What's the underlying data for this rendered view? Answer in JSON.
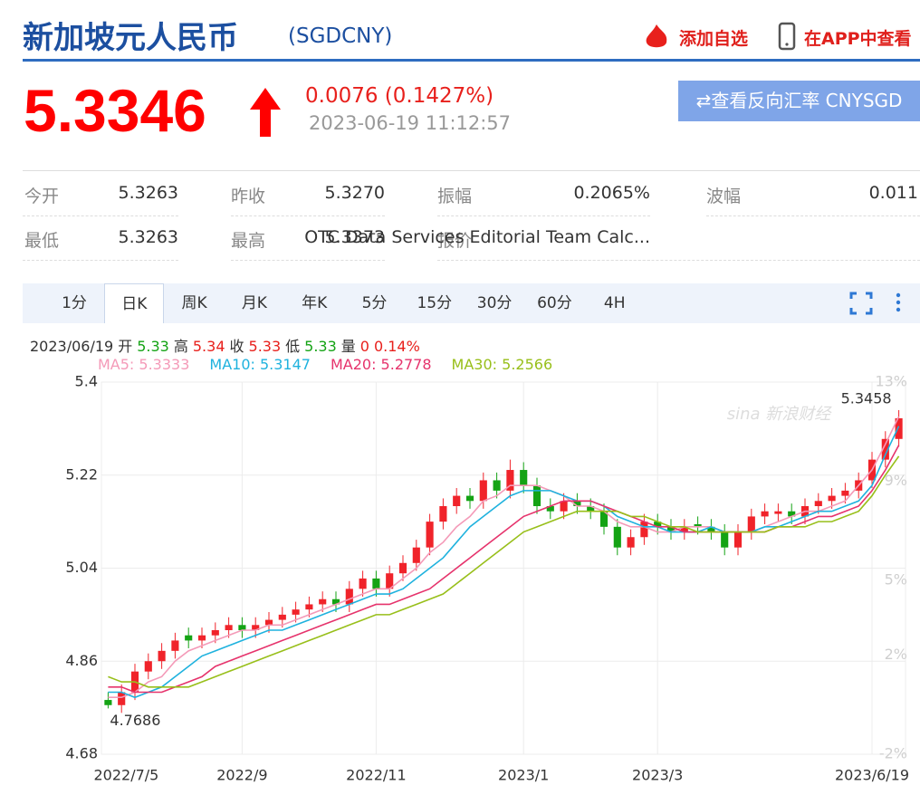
{
  "header": {
    "title": "新加坡元人民币",
    "code": "(SGDCNY)",
    "add_watch": "添加自选",
    "view_app": "在APP中查看"
  },
  "quote": {
    "price": "5.3346",
    "change": "0.0076 (0.1427%)",
    "time": "2023-06-19 11:12:57",
    "reverse_button": "⇄查看反向汇率 CNYSGD"
  },
  "stats": {
    "rows": [
      [
        "今开",
        "5.3263",
        "昨收",
        "5.3270",
        "振幅",
        "0.2065%",
        "波幅",
        "0.011"
      ],
      [
        "最低",
        "5.3263",
        "最高",
        "5.3373",
        "报价",
        "OTC Data Services Editorial Team Calc..."
      ]
    ]
  },
  "tabs": [
    "1分",
    "日K",
    "周K",
    "月K",
    "年K",
    "5分",
    "15分",
    "30分",
    "60分",
    "4H"
  ],
  "info": [
    "2023/06/19",
    "开",
    "5.33",
    "高",
    "5.34",
    "收",
    "5.33",
    "低",
    "5.33",
    "量",
    "0",
    "0.14%"
  ],
  "chart_data": {
    "type": "candlestick",
    "watermark": "sina 新浪财经",
    "up_color": "#f0232a",
    "down_color": "#14a314",
    "open": [
      4.785,
      4.775,
      4.8,
      4.84,
      4.86,
      4.88,
      4.91,
      4.9,
      4.91,
      4.92,
      4.93,
      4.92,
      4.93,
      4.94,
      4.95,
      4.96,
      4.97,
      4.98,
      4.97,
      5.0,
      5.02,
      5.0,
      5.03,
      5.05,
      5.08,
      5.13,
      5.16,
      5.18,
      5.17,
      5.21,
      5.19,
      5.23,
      5.2,
      5.16,
      5.15,
      5.17,
      5.16,
      5.15,
      5.12,
      5.08,
      5.1,
      5.13,
      5.12,
      5.11,
      5.125,
      5.12,
      5.11,
      5.08,
      5.11,
      5.14,
      5.145,
      5.15,
      5.14,
      5.16,
      5.17,
      5.18,
      5.19,
      5.21,
      5.25,
      5.29
    ],
    "high": [
      4.8,
      4.815,
      4.855,
      4.875,
      4.895,
      4.915,
      4.925,
      4.925,
      4.935,
      4.945,
      4.945,
      4.945,
      4.955,
      4.965,
      4.975,
      4.985,
      4.995,
      4.995,
      5.015,
      5.035,
      5.035,
      5.045,
      5.065,
      5.095,
      5.145,
      5.175,
      5.195,
      5.195,
      5.225,
      5.225,
      5.25,
      5.245,
      5.215,
      5.175,
      5.185,
      5.185,
      5.175,
      5.165,
      5.135,
      5.115,
      5.145,
      5.145,
      5.135,
      5.135,
      5.14,
      5.135,
      5.125,
      5.125,
      5.155,
      5.165,
      5.165,
      5.165,
      5.175,
      5.185,
      5.195,
      5.205,
      5.225,
      5.265,
      5.305,
      5.3458
    ],
    "low": [
      4.7686,
      4.76,
      4.785,
      4.825,
      4.845,
      4.865,
      4.885,
      4.885,
      4.895,
      4.905,
      4.905,
      4.905,
      4.915,
      4.925,
      4.935,
      4.945,
      4.955,
      4.955,
      4.955,
      4.985,
      4.985,
      4.985,
      5.015,
      5.035,
      5.065,
      5.115,
      5.145,
      5.155,
      5.155,
      5.175,
      5.175,
      5.185,
      5.145,
      5.135,
      5.135,
      5.145,
      5.135,
      5.105,
      5.065,
      5.065,
      5.085,
      5.105,
      5.095,
      5.095,
      5.105,
      5.095,
      5.065,
      5.065,
      5.095,
      5.125,
      5.13,
      5.125,
      5.125,
      5.145,
      5.155,
      5.165,
      5.175,
      5.195,
      5.235,
      5.275
    ],
    "close": [
      4.775,
      4.8,
      4.84,
      4.86,
      4.88,
      4.9,
      4.9,
      4.91,
      4.92,
      4.93,
      4.92,
      4.93,
      4.94,
      4.95,
      4.96,
      4.97,
      4.98,
      4.97,
      5.0,
      5.02,
      5.0,
      5.03,
      5.05,
      5.08,
      5.13,
      5.16,
      5.18,
      5.17,
      5.21,
      5.19,
      5.23,
      5.2,
      5.16,
      5.15,
      5.17,
      5.16,
      5.15,
      5.12,
      5.08,
      5.1,
      5.13,
      5.12,
      5.11,
      5.12,
      5.12,
      5.11,
      5.08,
      5.11,
      5.14,
      5.15,
      5.15,
      5.14,
      5.16,
      5.17,
      5.18,
      5.19,
      5.21,
      5.25,
      5.29,
      5.33
    ],
    "series": [
      {
        "name": "MA5: 5.3333",
        "color": "#f49ab8",
        "values": [
          4.79,
          4.79,
          4.8,
          4.82,
          4.83,
          4.86,
          4.88,
          4.89,
          4.9,
          4.91,
          4.92,
          4.92,
          4.93,
          4.93,
          4.94,
          4.95,
          4.96,
          4.97,
          4.98,
          4.99,
          5.0,
          5.0,
          5.02,
          5.04,
          5.07,
          5.09,
          5.12,
          5.14,
          5.17,
          5.18,
          5.2,
          5.2,
          5.2,
          5.19,
          5.18,
          5.16,
          5.16,
          5.15,
          5.13,
          5.12,
          5.12,
          5.11,
          5.11,
          5.12,
          5.12,
          5.12,
          5.11,
          5.11,
          5.11,
          5.12,
          5.13,
          5.14,
          5.15,
          5.15,
          5.16,
          5.17,
          5.2,
          5.23,
          5.28,
          5.3333
        ]
      },
      {
        "name": "MA10: 5.3147",
        "color": "#1fb2de",
        "values": [
          4.8,
          4.8,
          4.79,
          4.8,
          4.81,
          4.83,
          4.85,
          4.87,
          4.88,
          4.89,
          4.9,
          4.91,
          4.92,
          4.92,
          4.93,
          4.94,
          4.95,
          4.96,
          4.97,
          4.98,
          4.99,
          4.99,
          5.0,
          5.02,
          5.04,
          5.06,
          5.09,
          5.12,
          5.14,
          5.16,
          5.18,
          5.19,
          5.19,
          5.19,
          5.18,
          5.17,
          5.17,
          5.16,
          5.14,
          5.13,
          5.12,
          5.12,
          5.11,
          5.11,
          5.11,
          5.12,
          5.11,
          5.11,
          5.11,
          5.12,
          5.12,
          5.13,
          5.14,
          5.15,
          5.15,
          5.16,
          5.17,
          5.2,
          5.26,
          5.3147
        ]
      },
      {
        "name": "MA20: 5.2778",
        "color": "#e6336c",
        "values": [
          4.81,
          4.81,
          4.8,
          4.8,
          4.8,
          4.81,
          4.82,
          4.83,
          4.85,
          4.86,
          4.87,
          4.88,
          4.89,
          4.9,
          4.91,
          4.92,
          4.93,
          4.94,
          4.95,
          4.96,
          4.97,
          4.97,
          4.98,
          4.99,
          5.0,
          5.02,
          5.04,
          5.06,
          5.08,
          5.1,
          5.12,
          5.14,
          5.15,
          5.16,
          5.17,
          5.17,
          5.17,
          5.16,
          5.15,
          5.14,
          5.13,
          5.12,
          5.12,
          5.11,
          5.11,
          5.11,
          5.11,
          5.11,
          5.11,
          5.11,
          5.12,
          5.12,
          5.13,
          5.14,
          5.14,
          5.15,
          5.16,
          5.19,
          5.23,
          5.2778
        ]
      },
      {
        "name": "MA30: 5.2566",
        "color": "#98bf1a",
        "values": [
          4.83,
          4.82,
          4.82,
          4.81,
          4.81,
          4.81,
          4.81,
          4.82,
          4.83,
          4.84,
          4.85,
          4.86,
          4.87,
          4.88,
          4.89,
          4.9,
          4.91,
          4.92,
          4.93,
          4.94,
          4.95,
          4.95,
          4.96,
          4.97,
          4.98,
          4.99,
          5.01,
          5.03,
          5.05,
          5.07,
          5.09,
          5.11,
          5.12,
          5.13,
          5.14,
          5.15,
          5.15,
          5.15,
          5.15,
          5.14,
          5.14,
          5.13,
          5.12,
          5.12,
          5.11,
          5.11,
          5.11,
          5.11,
          5.11,
          5.11,
          5.12,
          5.12,
          5.12,
          5.13,
          5.13,
          5.14,
          5.15,
          5.18,
          5.22,
          5.2566
        ]
      }
    ],
    "xlim": [
      -0.5,
      59.5
    ],
    "xticks": [
      {
        "value": 0,
        "label": "2022/7/5"
      },
      {
        "value": 10,
        "label": "2022/9"
      },
      {
        "value": 20,
        "label": "2022/11"
      },
      {
        "value": 31,
        "label": "2023/1"
      },
      {
        "value": 41,
        "label": "2023/3"
      },
      {
        "value": 57,
        "label": "2023/6/19"
      }
    ],
    "ylim": [
      4.68,
      5.4
    ],
    "yticks": [
      5.4,
      5.22,
      5.04,
      4.86,
      4.68
    ],
    "y2lim": [
      -2,
      13
    ],
    "y2ticks": [
      {
        "value": 13,
        "label": "13%"
      },
      {
        "value": 9,
        "label": "9%"
      },
      {
        "value": 5,
        "label": "5%"
      },
      {
        "value": 2,
        "label": "2%"
      },
      {
        "value": -2,
        "label": "-2%"
      }
    ],
    "grid": true
  }
}
